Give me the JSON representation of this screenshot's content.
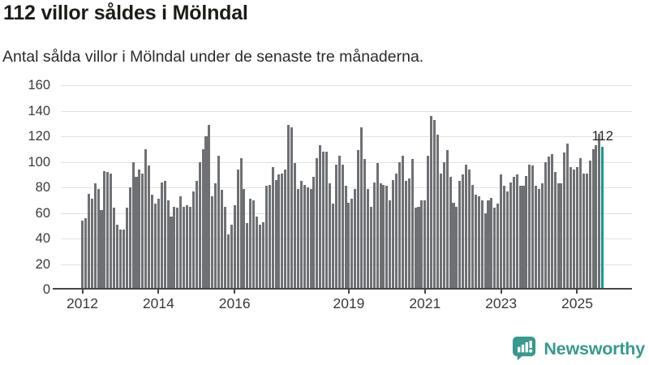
{
  "header": {
    "title": "112 villor såldes i Mölndal",
    "subtitle": "Antal sålda villor i Mölndal under de senaste tre månaderna."
  },
  "chart_data": {
    "type": "bar",
    "title": "112 villor såldes i Mölndal",
    "subtitle": "Antal sålda villor i Mölndal under de senaste tre månaderna.",
    "x_frequency": "monthly",
    "x_start": "2012-01",
    "x_end": "2025-09",
    "values": [
      54,
      56,
      75,
      71,
      83,
      79,
      62,
      93,
      92,
      91,
      64,
      51,
      47,
      47,
      64,
      80,
      100,
      88,
      94,
      91,
      110,
      97,
      74,
      67,
      71,
      84,
      85,
      70,
      57,
      65,
      64,
      73,
      65,
      66,
      65,
      77,
      85,
      100,
      110,
      120,
      129,
      73,
      83,
      105,
      78,
      65,
      43,
      51,
      66,
      94,
      103,
      79,
      52,
      71,
      70,
      57,
      51,
      53,
      81,
      82,
      96,
      86,
      90,
      91,
      94,
      129,
      127,
      99,
      79,
      85,
      82,
      80,
      79,
      88,
      103,
      113,
      108,
      108,
      83,
      67,
      98,
      105,
      98,
      81,
      68,
      71,
      79,
      109,
      127,
      102,
      79,
      65,
      84,
      99,
      83,
      82,
      81,
      70,
      86,
      91,
      100,
      105,
      85,
      87,
      102,
      64,
      65,
      70,
      70,
      105,
      136,
      133,
      121,
      91,
      100,
      109,
      88,
      68,
      65,
      85,
      90,
      98,
      94,
      82,
      74,
      73,
      70,
      60,
      70,
      72,
      64,
      67,
      90,
      81,
      77,
      84,
      88,
      90,
      81,
      81,
      89,
      98,
      97,
      81,
      79,
      83,
      100,
      104,
      106,
      92,
      83,
      83,
      107,
      114,
      96,
      94,
      96,
      103,
      91,
      91,
      101,
      110,
      113,
      122,
      112
    ],
    "ylim": [
      0,
      160
    ],
    "yticks": [
      0,
      20,
      40,
      60,
      80,
      100,
      120,
      140,
      160
    ],
    "xticks": [
      {
        "label": "2012",
        "index": 0
      },
      {
        "label": "2014",
        "index": 24
      },
      {
        "label": "2016",
        "index": 48
      },
      {
        "label": "2019",
        "index": 84
      },
      {
        "label": "2021",
        "index": 108
      },
      {
        "label": "2023",
        "index": 132
      },
      {
        "label": "2025",
        "index": 156
      }
    ],
    "highlight": {
      "index": 164,
      "value": 112,
      "label": "112"
    },
    "grid": true,
    "legend": "none",
    "colors": {
      "bar": "#6e7074",
      "highlight": "#169a93",
      "gridline": "#e1e1e1",
      "axis": "#474747",
      "annotation": "#1f1f1f"
    }
  },
  "logo": {
    "text": "Newsworthy",
    "color": "#38998f",
    "icon": "newsworthy-bar-chart-speech-bubble-icon"
  }
}
